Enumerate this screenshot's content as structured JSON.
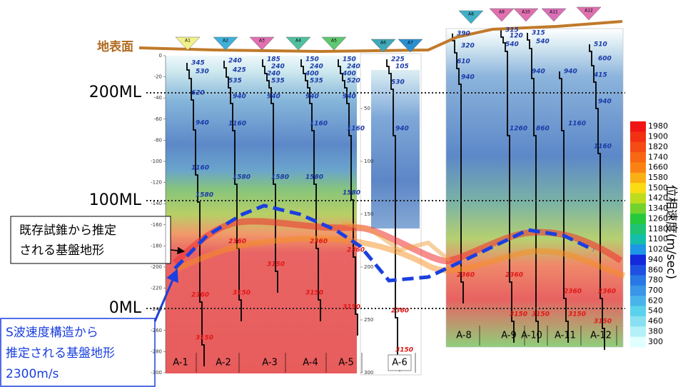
{
  "ground_label": "地表面",
  "elevation_lines": [
    "200ML",
    "100ML",
    "0ML"
  ],
  "annotations": {
    "existing": [
      "既存試錐から推定",
      "される基盤地形"
    ],
    "s_wave": [
      "S波速度構造から",
      "推定される基盤地形",
      "2300m/s"
    ]
  },
  "depth_ticks": [
    0,
    -20,
    -40,
    -60,
    -80,
    -100,
    -120,
    -140,
    -160,
    -180,
    -200,
    -220,
    -240,
    -260,
    -280,
    -300
  ],
  "a6_ticks": [
    50,
    100,
    150,
    200,
    250,
    300
  ],
  "colorbar": {
    "title": "位相速度(m/sec)",
    "ticks": [
      1980,
      1900,
      1820,
      1740,
      1660,
      1580,
      1500,
      1420,
      1340,
      1260,
      1180,
      1100,
      1020,
      940,
      860,
      780,
      700,
      620,
      540,
      460,
      380,
      300
    ]
  },
  "stations": [
    "A1",
    "A2",
    "A3",
    "A4",
    "A5",
    "A6",
    "A7",
    "A8",
    "A9",
    "A10",
    "A11",
    "A12"
  ],
  "panels": [
    {
      "label": "A-1",
      "velocities": [
        345,
        530,
        620,
        940,
        1160,
        1580,
        2360,
        3150
      ]
    },
    {
      "label": "A-2",
      "velocities": [
        240,
        425,
        535,
        940,
        1160,
        1580,
        2360,
        3150
      ]
    },
    {
      "label": "A-3",
      "velocities": [
        185,
        240,
        240,
        535,
        940,
        1580,
        3150
      ]
    },
    {
      "label": "A-4",
      "velocities": [
        150,
        240,
        400,
        535,
        940,
        1160,
        1580,
        2360,
        3150
      ]
    },
    {
      "label": "A-5",
      "velocities": [
        150,
        240,
        400,
        520,
        940,
        1160,
        1580,
        2360,
        3150
      ]
    },
    {
      "label": "A-6",
      "velocities": [
        225,
        105,
        530,
        940,
        2360,
        3150
      ]
    },
    {
      "label": "A-8",
      "velocities": [
        390,
        320,
        610,
        940,
        2360
      ]
    },
    {
      "label": "A-9",
      "velocities": [
        315,
        120,
        540,
        1260,
        2360,
        3150
      ]
    },
    {
      "label": "A-10",
      "velocities": [
        315,
        540,
        940,
        860,
        3150
      ]
    },
    {
      "label": "A-11",
      "velocities": [
        940,
        1160,
        2360,
        3150
      ]
    },
    {
      "label": "A-12",
      "velocities": [
        510,
        600,
        415,
        940,
        1160,
        2360,
        3150
      ]
    }
  ]
}
